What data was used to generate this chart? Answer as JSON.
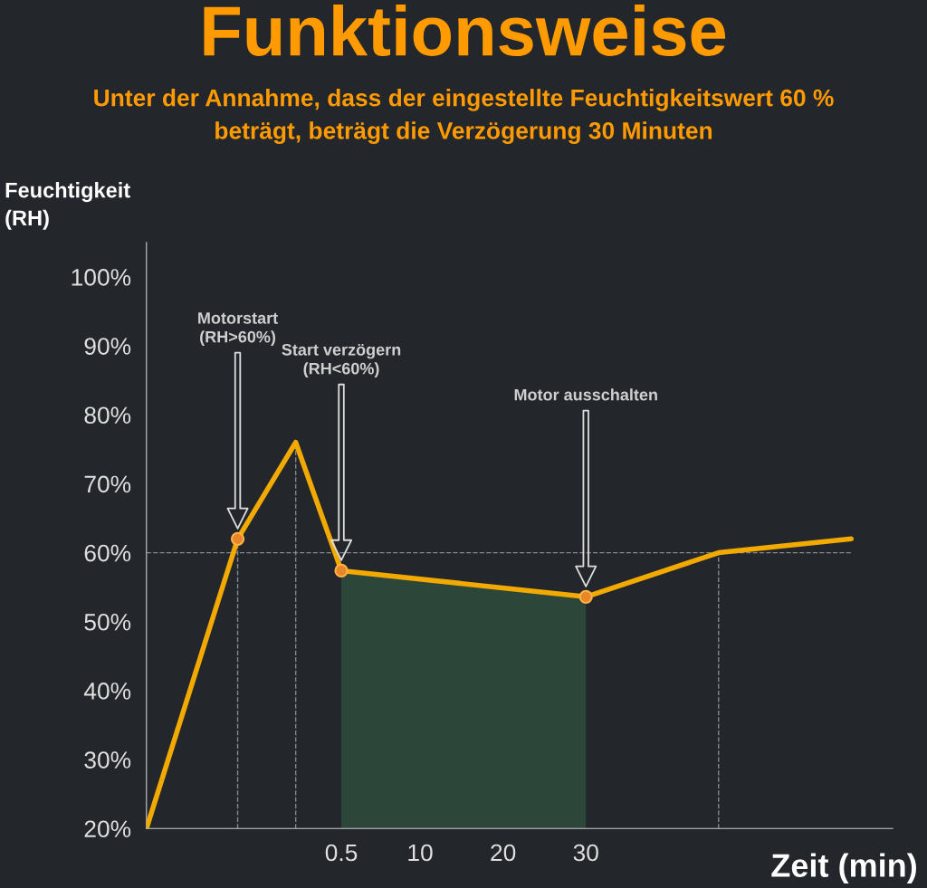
{
  "chart_data": {
    "type": "line",
    "title": "Funktionsweise",
    "subtitle": "Unter der Annahme, dass der eingestellte Feuchtigkeitswert 60 %\nbeträgt, beträgt die Verzögerung 30 Minuten",
    "xlabel": "Zeit (min)",
    "ylabel": "Feuchtigkeit\n(RH)",
    "series": [
      {
        "color": "#f2a900",
        "x": [
          -23,
          -12,
          -5,
          0.5,
          30,
          46,
          62
        ],
        "values": [
          20,
          62,
          76,
          57.4,
          53.6,
          60,
          62
        ]
      },
      {
        "type": "scatter",
        "marker": "circle",
        "color": "#e8862a",
        "x": [
          -12,
          0.5,
          30
        ],
        "values": [
          62,
          57.4,
          53.6
        ]
      }
    ],
    "xlim": [
      -23,
      67
    ],
    "ylim": [
      20,
      105
    ],
    "xticks": [
      0.5,
      10,
      20,
      30
    ],
    "yticks": [
      {
        "value": 20,
        "label": "20%"
      },
      {
        "value": 30,
        "label": "30%"
      },
      {
        "value": 40,
        "label": "40%"
      },
      {
        "value": 50,
        "label": "50%"
      },
      {
        "value": 60,
        "label": "60%"
      },
      {
        "value": 70,
        "label": "70%"
      },
      {
        "value": 80,
        "label": "80%"
      },
      {
        "value": 90,
        "label": "90%"
      },
      {
        "value": 100,
        "label": "100%"
      }
    ],
    "ref_lines": [
      {
        "axis": "y",
        "value": 60,
        "color": "#888888",
        "line_style": "dashed"
      },
      {
        "axis": "x",
        "value": -12,
        "color": "#888888",
        "line_style": "dashed"
      },
      {
        "axis": "x",
        "value": -5,
        "color": "#888888",
        "line_style": "dashed"
      },
      {
        "axis": "x",
        "value": 46,
        "color": "#888888",
        "line_style": "dashed"
      }
    ],
    "bands": [
      {
        "axis": "x",
        "from": 0.5,
        "to": 30,
        "color": "#2f4a3c"
      }
    ],
    "annotations": [
      "Motorstart\n(RH>60%)",
      "Start verzögern\n(RH<60%)",
      "Motor ausschalten"
    ],
    "grid": false,
    "legend": false,
    "line_style": "solid"
  }
}
